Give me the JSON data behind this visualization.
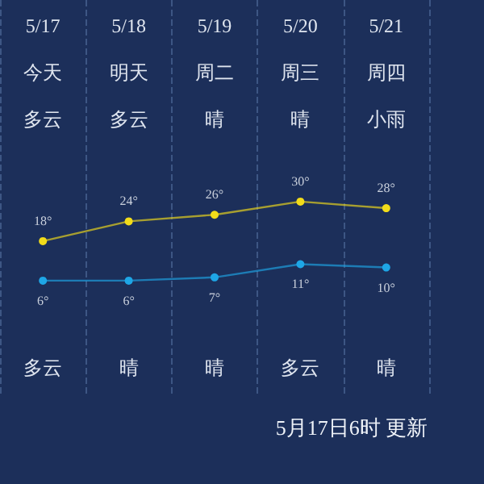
{
  "chart_data": {
    "type": "line",
    "categories": [
      "5/17",
      "5/18",
      "5/19",
      "5/20",
      "5/21"
    ],
    "series": [
      {
        "color": "#f2dc1a",
        "values": [
          18,
          24,
          26,
          30,
          28
        ],
        "value_labels": [
          "18°",
          "24°",
          "26°",
          "30°",
          "28°"
        ]
      },
      {
        "color": "#1ea6e6",
        "values": [
          6,
          6,
          7,
          11,
          10
        ],
        "value_labels": [
          "6°",
          "6°",
          "7°",
          "11°",
          "10°"
        ]
      }
    ],
    "marker": "circle",
    "grid": "x",
    "annotations": [
      "今天",
      "明天",
      "周二",
      "周三",
      "周四",
      "多云",
      "多云",
      "晴",
      "晴",
      "小雨",
      "多云",
      "晴",
      "晴",
      "多云",
      "晴",
      "5月17日6时 更新"
    ]
  }
}
